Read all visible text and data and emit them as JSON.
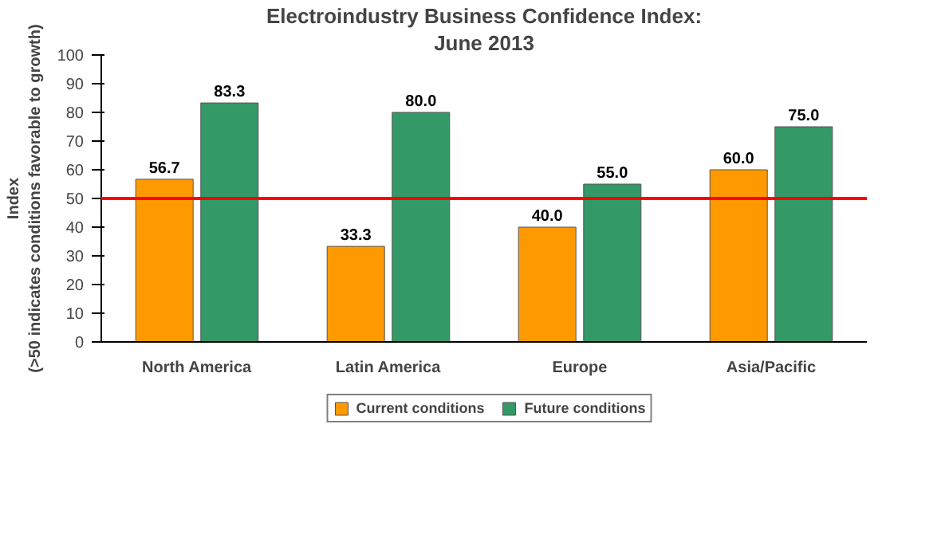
{
  "chart_data": {
    "type": "bar",
    "title": "Electroindustry Business Confidence Index:",
    "subtitle": "June 2013",
    "ylabel": "Index\n(>50 indicates conditions favorable to growth)",
    "categories": [
      "North America",
      "Latin America",
      "Europe",
      "Asia/Pacific"
    ],
    "series": [
      {
        "name": "Current conditions",
        "color": "#ff9900",
        "values": [
          56.7,
          33.3,
          40.0,
          60.0
        ],
        "value_labels": [
          "56.7",
          "33.3",
          "40.0",
          "60.0"
        ]
      },
      {
        "name": "Future conditions",
        "color": "#339966",
        "values": [
          83.3,
          80.0,
          55.0,
          75.0
        ],
        "value_labels": [
          "83.3",
          "80.0",
          "55.0",
          "75.0"
        ]
      }
    ],
    "ylim": [
      0,
      100
    ],
    "yticks": [
      0,
      10,
      20,
      30,
      40,
      50,
      60,
      70,
      80,
      90,
      100
    ],
    "ref_lines": [
      {
        "axis": "y",
        "value": 50,
        "color": "#ff0000"
      }
    ],
    "grid": false,
    "legend": "bottom"
  }
}
